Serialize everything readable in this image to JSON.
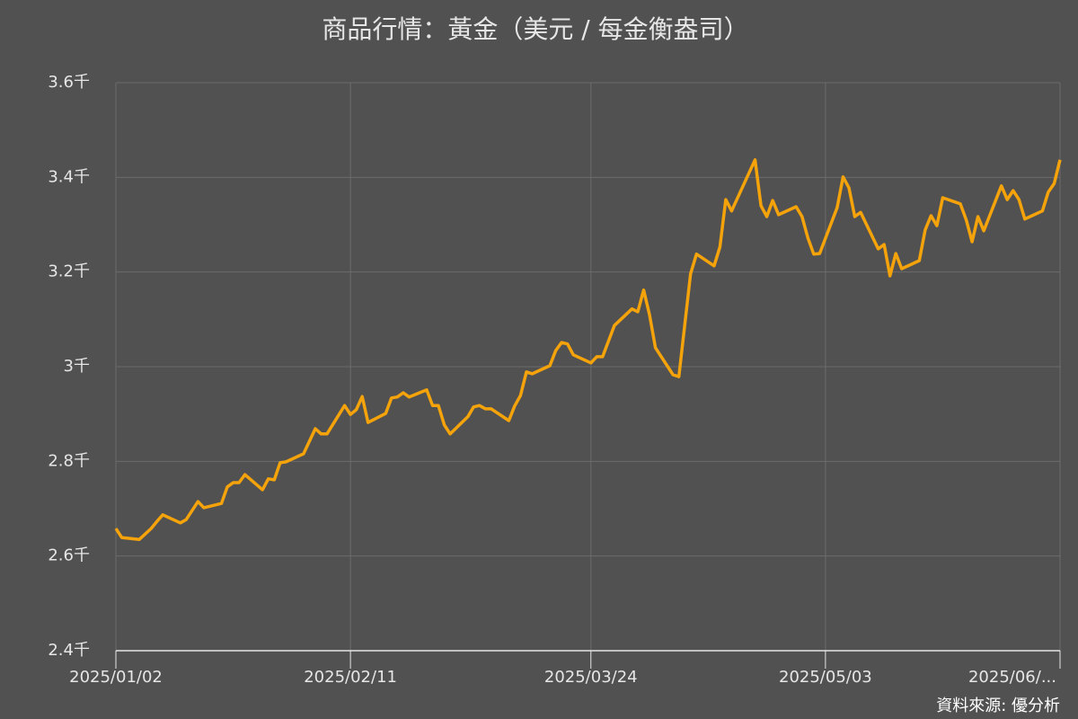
{
  "chart_data": {
    "type": "line",
    "title": "商品行情：黃金（美元 / 每金衡盎司）",
    "source": "資料來源: 優分析",
    "x": [
      "2025-01-02",
      "2025-01-03",
      "2025-01-06",
      "2025-01-08",
      "2025-01-09",
      "2025-01-10",
      "2025-01-13",
      "2025-01-14",
      "2025-01-16",
      "2025-01-17",
      "2025-01-20",
      "2025-01-21",
      "2025-01-22",
      "2025-01-23",
      "2025-01-24",
      "2025-01-27",
      "2025-01-28",
      "2025-01-29",
      "2025-01-30",
      "2025-01-31",
      "2025-02-03",
      "2025-02-05",
      "2025-02-06",
      "2025-02-07",
      "2025-02-10",
      "2025-02-11",
      "2025-02-12",
      "2025-02-13",
      "2025-02-14",
      "2025-02-17",
      "2025-02-18",
      "2025-02-19",
      "2025-02-20",
      "2025-02-21",
      "2025-02-24",
      "2025-02-25",
      "2025-02-26",
      "2025-02-27",
      "2025-02-28",
      "2025-03-03",
      "2025-03-04",
      "2025-03-05",
      "2025-03-06",
      "2025-03-07",
      "2025-03-10",
      "2025-03-11",
      "2025-03-12",
      "2025-03-13",
      "2025-03-14",
      "2025-03-17",
      "2025-03-18",
      "2025-03-19",
      "2025-03-20",
      "2025-03-21",
      "2025-03-24",
      "2025-03-25",
      "2025-03-26",
      "2025-03-28",
      "2025-03-31",
      "2025-04-01",
      "2025-04-02",
      "2025-04-03",
      "2025-04-04",
      "2025-04-07",
      "2025-04-08",
      "2025-04-10",
      "2025-04-11",
      "2025-04-14",
      "2025-04-15",
      "2025-04-16",
      "2025-04-17",
      "2025-04-21",
      "2025-04-22",
      "2025-04-23",
      "2025-04-24",
      "2025-04-25",
      "2025-04-28",
      "2025-04-29",
      "2025-04-30",
      "2025-05-01",
      "2025-05-02",
      "2025-05-05",
      "2025-05-06",
      "2025-05-07",
      "2025-05-08",
      "2025-05-09",
      "2025-05-12",
      "2025-05-13",
      "2025-05-14",
      "2025-05-15",
      "2025-05-16",
      "2025-05-19",
      "2025-05-20",
      "2025-05-21",
      "2025-05-22",
      "2025-05-23",
      "2025-05-26",
      "2025-05-27",
      "2025-05-28",
      "2025-05-29",
      "2025-05-30",
      "2025-06-02",
      "2025-06-03",
      "2025-06-04",
      "2025-06-05",
      "2025-06-06",
      "2025-06-09",
      "2025-06-10",
      "2025-06-11",
      "2025-06-12"
    ],
    "series": [
      {
        "name": "黃金",
        "color": "#f5a30a",
        "values": [
          2658,
          2639,
          2635,
          2658,
          2673,
          2687,
          2670,
          2677,
          2715,
          2702,
          2711,
          2746,
          2755,
          2755,
          2772,
          2740,
          2763,
          2761,
          2797,
          2799,
          2816,
          2869,
          2858,
          2858,
          2918,
          2899,
          2909,
          2937,
          2882,
          2901,
          2934,
          2936,
          2945,
          2936,
          2951,
          2918,
          2918,
          2877,
          2858,
          2894,
          2915,
          2918,
          2911,
          2911,
          2886,
          2917,
          2939,
          2989,
          2985,
          3002,
          3034,
          3051,
          3048,
          3025,
          3008,
          3021,
          3021,
          3087,
          3122,
          3116,
          3162,
          3110,
          3040,
          2983,
          2979,
          3196,
          3238,
          3213,
          3253,
          3353,
          3329,
          3437,
          3340,
          3317,
          3351,
          3321,
          3338,
          3317,
          3272,
          3238,
          3239,
          3336,
          3401,
          3378,
          3317,
          3326,
          3249,
          3258,
          3192,
          3239,
          3207,
          3224,
          3289,
          3319,
          3298,
          3357,
          3344,
          3310,
          3264,
          3317,
          3287,
          3382,
          3353,
          3372,
          3353,
          3312,
          3329,
          3369,
          3387,
          3437
        ]
      }
    ],
    "xlim": [
      "2025-01-02",
      "2025-06-12"
    ],
    "xticks": [
      {
        "value": "2025-01-02",
        "label": "2025/01/02"
      },
      {
        "value": "2025-02-11",
        "label": "2025/02/11"
      },
      {
        "value": "2025-03-24",
        "label": "2025/03/24"
      },
      {
        "value": "2025-05-03",
        "label": "2025/05/03"
      },
      {
        "value": "2025-06-12",
        "label": "2025/06/..."
      }
    ],
    "ylim": [
      2400,
      3600
    ],
    "yticks": [
      {
        "value": 2400,
        "label": "2.4千"
      },
      {
        "value": 2600,
        "label": "2.6千"
      },
      {
        "value": 2800,
        "label": "2.8千"
      },
      {
        "value": 3000,
        "label": "3千"
      },
      {
        "value": 3200,
        "label": "3.2千"
      },
      {
        "value": 3400,
        "label": "3.4千"
      },
      {
        "value": 3600,
        "label": "3.6千"
      }
    ],
    "grid": true
  }
}
